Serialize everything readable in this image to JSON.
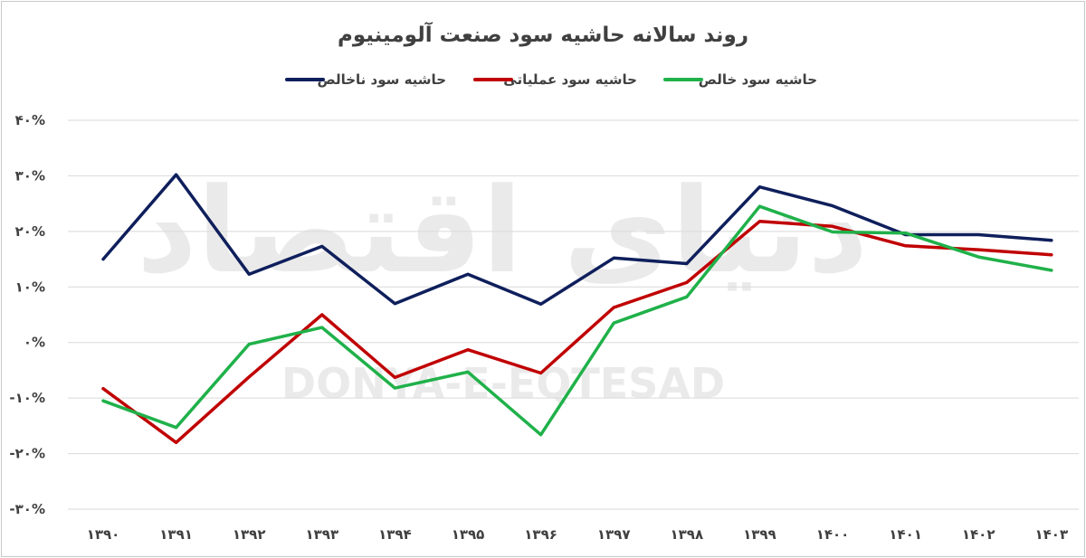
{
  "chart_data": {
    "type": "line",
    "title": "روند سالانه حاشیه سود صنعت آلومینیوم",
    "watermark": {
      "logo_text": "دنیای اقتصاد",
      "latin_text": "DONYA-E-EQTESAD"
    },
    "categories": [
      "۱۳۹۰",
      "۱۳۹۱",
      "۱۳۹۲",
      "۱۳۹۳",
      "۱۳۹۴",
      "۱۳۹۵",
      "۱۳۹۶",
      "۱۳۹۷",
      "۱۳۹۸",
      "۱۳۹۹",
      "۱۴۰۰",
      "۱۴۰۱",
      "۱۴۰۲",
      "۱۴۰۳"
    ],
    "ylim": [
      -30,
      40
    ],
    "yticks": [
      {
        "value": 40,
        "label": "۴۰%"
      },
      {
        "value": 30,
        "label": "۳۰%"
      },
      {
        "value": 20,
        "label": "۲۰%"
      },
      {
        "value": 10,
        "label": "۱۰%"
      },
      {
        "value": 0,
        "label": "۰%"
      },
      {
        "value": -10,
        "label": "-۱۰%"
      },
      {
        "value": -20,
        "label": "-۲۰%"
      },
      {
        "value": -30,
        "label": "-۳۰%"
      }
    ],
    "grid": true,
    "legend_position": "top",
    "series": [
      {
        "name": "حاشیه سود ناخالص",
        "color": "#0f1f5c",
        "values": [
          15,
          30.2,
          12.3,
          17.3,
          7,
          12.3,
          6.9,
          15.2,
          14.2,
          28,
          24.6,
          19.4,
          19.4,
          18.4
        ]
      },
      {
        "name": "حاشیه سود عملیاتی",
        "color": "#c00000",
        "values": [
          -8.3,
          -18,
          -6.2,
          5,
          -6.3,
          -1.3,
          -5.5,
          6.3,
          10.8,
          21.8,
          20.9,
          17.4,
          16.7,
          15.8
        ]
      },
      {
        "name": "حاشیه سود خالص",
        "color": "#20b14a",
        "values": [
          -10.5,
          -15.3,
          -0.3,
          2.7,
          -8.2,
          -5.3,
          -16.6,
          3.5,
          8.2,
          24.5,
          19.9,
          19.7,
          15.4,
          13
        ]
      }
    ]
  }
}
